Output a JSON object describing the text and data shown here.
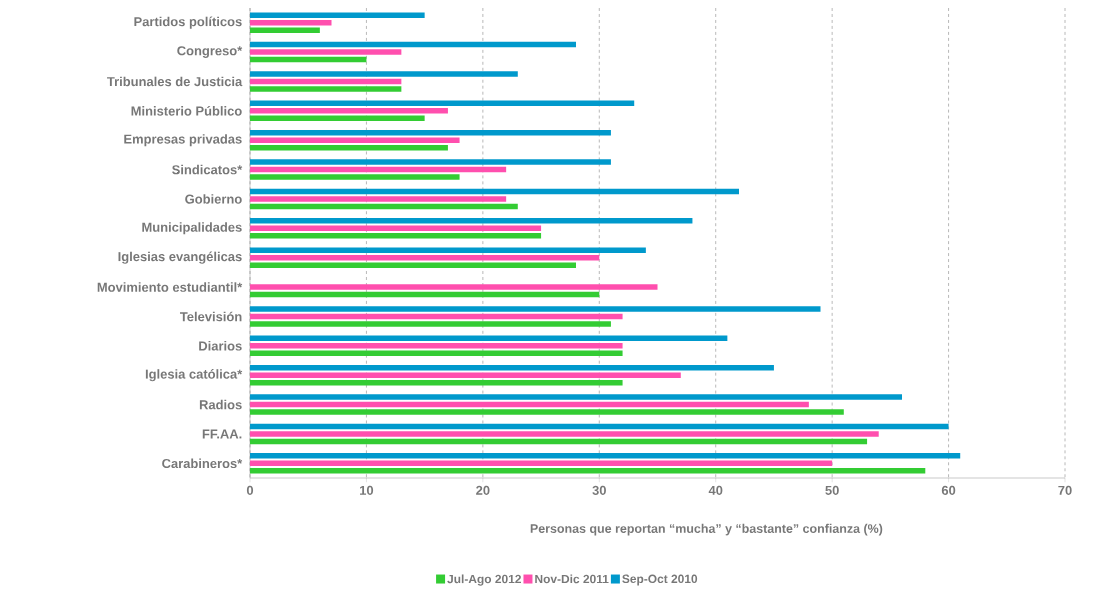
{
  "chart_data": {
    "type": "bar",
    "orientation": "horizontal",
    "xlabel": "Personas que reportan “mucha” y “bastante” confianza (%)",
    "categories": [
      "Partidos políticos",
      "Congreso*",
      "Tribunales de Justicia",
      "Ministerio Público",
      "Empresas privadas",
      "Sindicatos*",
      "Gobierno",
      "Municipalidades",
      "Iglesias evangélicas",
      "Movimiento estudiantil*",
      "Televisión",
      "Diarios",
      "Iglesia católica*",
      "Radios",
      "FF.AA.",
      "Carabineros*"
    ],
    "series": [
      {
        "name": "Jul-Ago 2012",
        "color": "#33cc33",
        "values": [
          6,
          10,
          13,
          15,
          17,
          18,
          23,
          25,
          28,
          30,
          31,
          32,
          32,
          51,
          53,
          58
        ]
      },
      {
        "name": "Nov-Dic 2011",
        "color": "#ff4fae",
        "values": [
          7,
          13,
          13,
          17,
          18,
          22,
          22,
          25,
          30,
          35,
          32,
          32,
          37,
          48,
          54,
          50
        ]
      },
      {
        "name": "Sep-Oct 2010",
        "color": "#0099cc",
        "values": [
          15,
          28,
          23,
          33,
          31,
          31,
          42,
          38,
          34,
          null,
          49,
          41,
          45,
          56,
          60,
          61
        ]
      }
    ],
    "xlim": [
      0,
      70
    ],
    "xticks": [
      0,
      10,
      20,
      30,
      40,
      50,
      60,
      70
    ],
    "grid": "x",
    "legend": "bottom"
  }
}
